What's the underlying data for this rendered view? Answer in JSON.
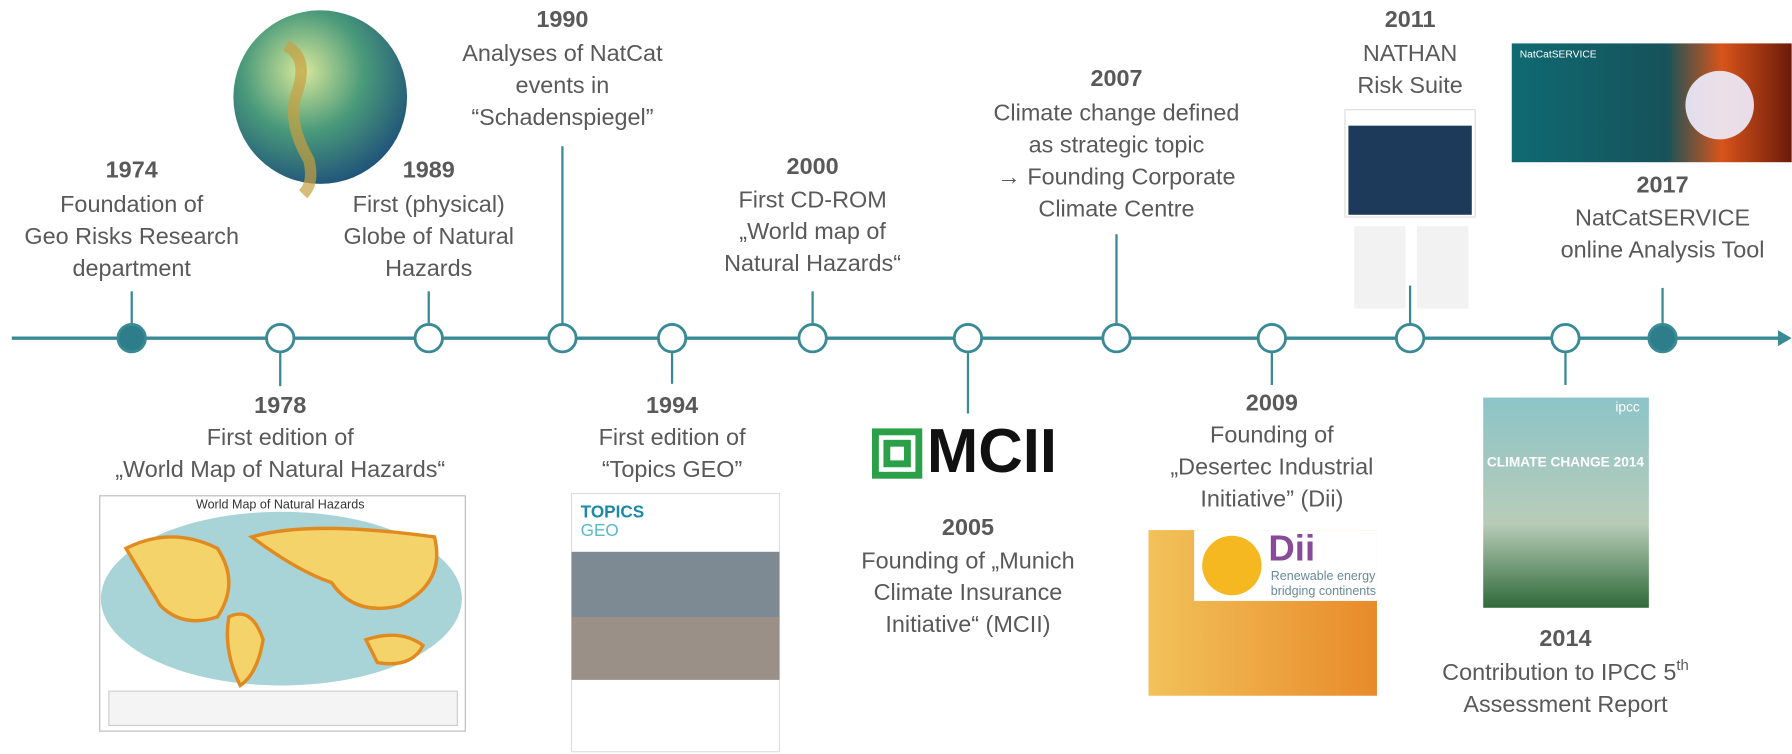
{
  "events": [
    {
      "year": "1974",
      "lines": [
        "Foundation of",
        "Geo Risks Research",
        "department"
      ]
    },
    {
      "year": "1978",
      "lines": [
        "First edition of",
        "„World Map of Natural Hazards“"
      ]
    },
    {
      "year": "1989",
      "lines": [
        "First (physical)",
        "Globe of Natural",
        "Hazards"
      ]
    },
    {
      "year": "1990",
      "lines": [
        "Analyses of NatCat",
        "events in",
        "“Schadenspiegel”"
      ]
    },
    {
      "year": "1994",
      "lines": [
        "First edition of",
        "“Topics GEO”"
      ]
    },
    {
      "year": "2000",
      "lines": [
        "First CD-ROM",
        "„World map of",
        "Natural Hazards“"
      ]
    },
    {
      "year": "2005",
      "lines": [
        "Founding of „Munich",
        "Climate Insurance",
        "Initiative“ (MCII)"
      ]
    },
    {
      "year": "2007",
      "lines": [
        "Climate change defined",
        "as strategic topic",
        "→ Founding Corporate",
        "Climate Centre"
      ]
    },
    {
      "year": "2009",
      "lines": [
        "Founding of",
        "„Desertec Industrial",
        "Initiative” (Dii)"
      ]
    },
    {
      "year": "2011",
      "lines": [
        "NATHAN",
        "Risk Suite"
      ]
    },
    {
      "year": "2014",
      "lines": [
        {
          "text": "Contribution to IPCC 5",
          "sup": "th"
        },
        "Assessment Report"
      ]
    },
    {
      "year": "2017",
      "lines": [
        "NatCatSERVICE",
        "online Analysis Tool"
      ]
    }
  ],
  "images": {
    "world_map_title": "World Map of Natural Hazards",
    "topics": "TOPICS",
    "geo": "GEO",
    "mcii": "MCII",
    "dii": "Dii",
    "dii_tagline": [
      "Renewable energy",
      "bridging continents"
    ],
    "natcat": "NatCatSERVICE",
    "ipcc": "ipcc",
    "ipcc_title": "CLIMATE CHANGE 2014"
  }
}
